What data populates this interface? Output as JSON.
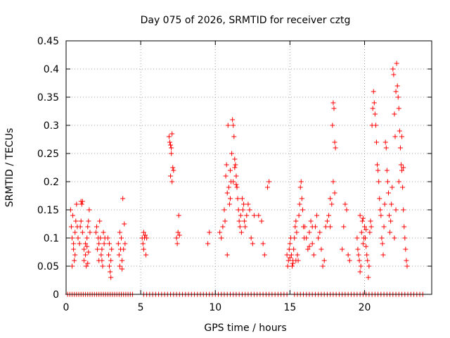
{
  "chart_data": {
    "type": "scatter",
    "title": "Day 075 of 2026, SRMTID for receiver cztg",
    "xlabel": "GPS time / hours",
    "ylabel": "SRMTID / TECUs",
    "xlim": [
      0,
      24.5
    ],
    "ylim": [
      0,
      0.45
    ],
    "x_ticks": [
      0,
      5,
      10,
      15,
      20
    ],
    "y_ticks": [
      0,
      0.05,
      0.1,
      0.15,
      0.2,
      0.25,
      0.3,
      0.35,
      0.4,
      0.45
    ],
    "x_tick_labels": [
      "0",
      "5",
      "10",
      "15",
      "20"
    ],
    "y_tick_labels": [
      "0",
      "0.05",
      "0.1",
      "0.15",
      "0.2",
      "0.25",
      "0.3",
      "0.35",
      "0.4",
      "0.45"
    ],
    "grid": true,
    "marker": "+",
    "series_color": "#ff0000",
    "series": [
      {
        "name": "SRMTID",
        "points": [
          [
            0.3,
            0.15
          ],
          [
            0.35,
            0.12
          ],
          [
            0.4,
            0.1
          ],
          [
            0.45,
            0.14
          ],
          [
            0.5,
            0.08
          ],
          [
            0.55,
            0.06
          ],
          [
            0.6,
            0.11
          ],
          [
            0.65,
            0.13
          ],
          [
            0.4,
            0.05
          ],
          [
            0.5,
            0.09
          ],
          [
            0.7,
            0.16
          ],
          [
            0.75,
            0.12
          ],
          [
            0.6,
            0.07
          ],
          [
            0.8,
            0.1
          ],
          [
            0.9,
            0.09
          ],
          [
            0.95,
            0.12
          ],
          [
            1.0,
            0.165
          ],
          [
            1.05,
            0.16
          ],
          [
            1.1,
            0.165
          ],
          [
            1.0,
            0.13
          ],
          [
            1.1,
            0.11
          ],
          [
            1.2,
            0.08
          ],
          [
            1.3,
            0.07
          ],
          [
            1.35,
            0.05
          ],
          [
            1.4,
            0.1
          ],
          [
            1.45,
            0.12
          ],
          [
            1.5,
            0.13
          ],
          [
            1.55,
            0.15
          ],
          [
            1.2,
            0.06
          ],
          [
            1.3,
            0.09
          ],
          [
            1.4,
            0.085
          ],
          [
            1.5,
            0.075
          ],
          [
            1.6,
            0.11
          ],
          [
            1.45,
            0.055
          ],
          [
            2.0,
            0.11
          ],
          [
            2.05,
            0.12
          ],
          [
            2.1,
            0.08
          ],
          [
            2.15,
            0.1
          ],
          [
            2.2,
            0.09
          ],
          [
            2.25,
            0.13
          ],
          [
            2.3,
            0.1
          ],
          [
            2.35,
            0.07
          ],
          [
            2.4,
            0.06
          ],
          [
            2.45,
            0.05
          ],
          [
            2.5,
            0.11
          ],
          [
            2.55,
            0.09
          ],
          [
            2.6,
            0.1
          ],
          [
            2.2,
            0.06
          ],
          [
            2.4,
            0.08
          ],
          [
            2.8,
            0.1
          ],
          [
            2.85,
            0.07
          ],
          [
            2.9,
            0.05
          ],
          [
            2.95,
            0.04
          ],
          [
            3.0,
            0.06
          ],
          [
            3.05,
            0.08
          ],
          [
            2.9,
            0.09
          ],
          [
            3.0,
            0.03
          ],
          [
            3.5,
            0.09
          ],
          [
            3.55,
            0.07
          ],
          [
            3.6,
            0.05
          ],
          [
            3.65,
            0.08
          ],
          [
            3.7,
            0.1
          ],
          [
            3.75,
            0.06
          ],
          [
            3.8,
            0.17
          ],
          [
            3.85,
            0.08
          ],
          [
            3.9,
            0.125
          ],
          [
            3.95,
            0.09
          ],
          [
            3.6,
            0.11
          ],
          [
            3.75,
            0.045
          ],
          [
            5.1,
            0.1
          ],
          [
            5.15,
            0.09
          ],
          [
            5.2,
            0.08
          ],
          [
            5.25,
            0.1
          ],
          [
            5.3,
            0.105
          ],
          [
            5.35,
            0.07
          ],
          [
            5.4,
            0.1
          ],
          [
            5.2,
            0.11
          ],
          [
            6.9,
            0.28
          ],
          [
            6.95,
            0.27
          ],
          [
            7.0,
            0.265
          ],
          [
            7.05,
            0.25
          ],
          [
            7.1,
            0.285
          ],
          [
            7.15,
            0.225
          ],
          [
            7.0,
            0.21
          ],
          [
            7.1,
            0.2
          ],
          [
            7.2,
            0.22
          ],
          [
            7.05,
            0.26
          ],
          [
            7.4,
            0.1
          ],
          [
            7.45,
            0.09
          ],
          [
            7.5,
            0.11
          ],
          [
            7.55,
            0.14
          ],
          [
            7.6,
            0.105
          ],
          [
            9.5,
            0.09
          ],
          [
            9.6,
            0.11
          ],
          [
            10.3,
            0.11
          ],
          [
            10.4,
            0.1
          ],
          [
            10.5,
            0.12
          ],
          [
            10.6,
            0.15
          ],
          [
            10.65,
            0.13
          ],
          [
            10.7,
            0.21
          ],
          [
            10.75,
            0.23
          ],
          [
            10.8,
            0.18
          ],
          [
            10.85,
            0.3
          ],
          [
            10.9,
            0.19
          ],
          [
            10.95,
            0.16
          ],
          [
            11.0,
            0.22
          ],
          [
            11.05,
            0.2
          ],
          [
            11.1,
            0.25
          ],
          [
            11.15,
            0.31
          ],
          [
            11.2,
            0.3
          ],
          [
            11.25,
            0.28
          ],
          [
            11.3,
            0.24
          ],
          [
            11.35,
            0.23
          ],
          [
            11.4,
            0.21
          ],
          [
            11.45,
            0.19
          ],
          [
            11.5,
            0.17
          ],
          [
            11.55,
            0.15
          ],
          [
            11.6,
            0.13
          ],
          [
            11.65,
            0.12
          ],
          [
            11.7,
            0.14
          ],
          [
            11.75,
            0.11
          ],
          [
            10.8,
            0.07
          ],
          [
            11.0,
            0.17
          ],
          [
            11.2,
            0.2
          ],
          [
            11.3,
            0.225
          ],
          [
            11.4,
            0.195
          ],
          [
            11.8,
            0.17
          ],
          [
            11.85,
            0.15
          ],
          [
            11.9,
            0.16
          ],
          [
            11.95,
            0.13
          ],
          [
            12.0,
            0.12
          ],
          [
            12.1,
            0.14
          ],
          [
            12.2,
            0.16
          ],
          [
            12.3,
            0.15
          ],
          [
            12.4,
            0.1
          ],
          [
            12.5,
            0.09
          ],
          [
            12.6,
            0.14
          ],
          [
            12.9,
            0.14
          ],
          [
            13.1,
            0.13
          ],
          [
            13.2,
            0.09
          ],
          [
            13.3,
            0.07
          ],
          [
            13.5,
            0.19
          ],
          [
            13.6,
            0.2
          ],
          [
            14.8,
            0.07
          ],
          [
            14.85,
            0.05
          ],
          [
            14.9,
            0.06
          ],
          [
            14.95,
            0.08
          ],
          [
            15.0,
            0.09
          ],
          [
            15.05,
            0.1
          ],
          [
            15.1,
            0.07
          ],
          [
            15.15,
            0.05
          ],
          [
            15.2,
            0.06
          ],
          [
            15.25,
            0.08
          ],
          [
            15.3,
            0.1
          ],
          [
            15.35,
            0.12
          ],
          [
            15.4,
            0.13
          ],
          [
            15.45,
            0.11
          ],
          [
            15.5,
            0.07
          ],
          [
            15.55,
            0.06
          ],
          [
            15.6,
            0.14
          ],
          [
            15.65,
            0.16
          ],
          [
            15.7,
            0.19
          ],
          [
            15.75,
            0.2
          ],
          [
            15.8,
            0.17
          ],
          [
            15.85,
            0.15
          ],
          [
            15.9,
            0.12
          ],
          [
            15.95,
            0.1
          ],
          [
            15.0,
            0.065
          ],
          [
            15.2,
            0.055
          ],
          [
            15.4,
            0.06
          ],
          [
            16.0,
            0.12
          ],
          [
            16.1,
            0.1
          ],
          [
            16.2,
            0.08
          ],
          [
            16.3,
            0.11
          ],
          [
            16.4,
            0.13
          ],
          [
            16.5,
            0.09
          ],
          [
            16.6,
            0.07
          ],
          [
            16.7,
            0.12
          ],
          [
            16.8,
            0.14
          ],
          [
            16.9,
            0.1
          ],
          [
            16.5,
            0.12
          ],
          [
            16.3,
            0.085
          ],
          [
            17.0,
            0.11
          ],
          [
            17.1,
            0.08
          ],
          [
            17.2,
            0.05
          ],
          [
            17.3,
            0.06
          ],
          [
            17.4,
            0.12
          ],
          [
            17.5,
            0.13
          ],
          [
            17.6,
            0.14
          ],
          [
            17.7,
            0.12
          ],
          [
            17.8,
            0.16
          ],
          [
            17.85,
            0.3
          ],
          [
            17.9,
            0.34
          ],
          [
            17.95,
            0.33
          ],
          [
            18.0,
            0.27
          ],
          [
            18.05,
            0.26
          ],
          [
            17.9,
            0.2
          ],
          [
            18.0,
            0.18
          ],
          [
            17.7,
            0.17
          ],
          [
            18.5,
            0.08
          ],
          [
            18.6,
            0.12
          ],
          [
            18.7,
            0.16
          ],
          [
            18.8,
            0.15
          ],
          [
            18.9,
            0.07
          ],
          [
            19.0,
            0.06
          ],
          [
            19.5,
            0.1
          ],
          [
            19.55,
            0.08
          ],
          [
            19.6,
            0.07
          ],
          [
            19.65,
            0.06
          ],
          [
            19.7,
            0.04
          ],
          [
            19.75,
            0.05
          ],
          [
            19.8,
            0.11
          ],
          [
            19.85,
            0.13
          ],
          [
            19.9,
            0.09
          ],
          [
            19.95,
            0.1
          ],
          [
            20.0,
            0.12
          ],
          [
            20.05,
            0.1
          ],
          [
            20.1,
            0.085
          ],
          [
            20.15,
            0.07
          ],
          [
            20.2,
            0.06
          ],
          [
            20.25,
            0.03
          ],
          [
            20.3,
            0.05
          ],
          [
            20.35,
            0.11
          ],
          [
            20.4,
            0.13
          ],
          [
            20.45,
            0.12
          ],
          [
            19.7,
            0.14
          ],
          [
            19.9,
            0.135
          ],
          [
            20.1,
            0.115
          ],
          [
            20.5,
            0.3
          ],
          [
            20.55,
            0.33
          ],
          [
            20.6,
            0.36
          ],
          [
            20.65,
            0.34
          ],
          [
            20.7,
            0.32
          ],
          [
            20.75,
            0.3
          ],
          [
            20.8,
            0.27
          ],
          [
            20.85,
            0.23
          ],
          [
            20.9,
            0.22
          ],
          [
            20.95,
            0.2
          ],
          [
            21.0,
            0.17
          ],
          [
            21.05,
            0.15
          ],
          [
            21.1,
            0.14
          ],
          [
            21.15,
            0.1
          ],
          [
            21.2,
            0.09
          ],
          [
            21.25,
            0.07
          ],
          [
            21.3,
            0.12
          ],
          [
            21.35,
            0.16
          ],
          [
            21.4,
            0.27
          ],
          [
            21.45,
            0.26
          ],
          [
            21.5,
            0.22
          ],
          [
            21.55,
            0.2
          ],
          [
            21.6,
            0.18
          ],
          [
            21.65,
            0.14
          ],
          [
            21.7,
            0.11
          ],
          [
            21.75,
            0.13
          ],
          [
            21.8,
            0.16
          ],
          [
            21.85,
            0.19
          ],
          [
            21.9,
            0.4
          ],
          [
            21.95,
            0.39
          ],
          [
            22.0,
            0.32
          ],
          [
            22.05,
            0.28
          ],
          [
            22.1,
            0.36
          ],
          [
            22.15,
            0.41
          ],
          [
            22.2,
            0.37
          ],
          [
            22.25,
            0.35
          ],
          [
            22.3,
            0.33
          ],
          [
            22.35,
            0.29
          ],
          [
            22.4,
            0.26
          ],
          [
            22.45,
            0.23
          ],
          [
            22.5,
            0.22
          ],
          [
            22.55,
            0.19
          ],
          [
            22.6,
            0.15
          ],
          [
            22.65,
            0.12
          ],
          [
            22.7,
            0.1
          ],
          [
            22.75,
            0.08
          ],
          [
            22.8,
            0.06
          ],
          [
            22.85,
            0.05
          ],
          [
            22.0,
            0.1
          ],
          [
            22.1,
            0.15
          ],
          [
            22.3,
            0.2
          ],
          [
            22.5,
            0.28
          ],
          [
            22.6,
            0.225
          ]
        ],
        "zero_x": [
          0.1,
          0.25,
          0.4,
          0.55,
          0.7,
          0.85,
          1.0,
          1.15,
          1.3,
          1.45,
          1.6,
          1.75,
          1.9,
          2.05,
          2.2,
          2.35,
          2.5,
          2.65,
          2.8,
          2.95,
          3.1,
          3.25,
          3.4,
          3.55,
          3.7,
          3.85,
          4.0,
          4.15,
          4.3,
          4.45,
          5.2,
          5.4,
          5.6,
          5.8,
          6.0,
          6.2,
          6.4,
          6.6,
          6.8,
          7.0,
          7.2,
          7.4,
          7.6,
          7.8,
          8.0,
          8.2,
          8.4,
          8.6,
          8.8,
          9.0,
          9.2,
          9.4,
          9.6,
          9.8,
          10.0,
          10.2,
          10.4,
          10.6,
          10.8,
          11.0,
          11.2,
          11.4,
          11.6,
          11.8,
          12.0,
          12.2,
          12.4,
          12.6,
          12.8,
          13.0,
          13.2,
          13.4,
          13.6,
          13.8,
          14.0,
          14.2,
          14.4,
          14.6,
          14.8,
          15.3,
          15.5,
          15.7,
          15.9,
          16.1,
          16.3,
          16.5,
          16.7,
          16.9,
          17.1,
          17.3,
          17.5,
          17.7,
          17.9,
          18.1,
          18.3,
          18.5,
          18.7,
          18.9,
          19.1,
          19.3,
          19.5,
          19.7,
          19.9,
          20.1,
          20.3,
          20.5,
          20.7,
          20.9,
          21.1,
          21.3,
          21.5,
          21.7,
          21.9,
          22.1,
          22.3,
          22.5,
          22.7,
          22.9,
          23.1,
          23.3,
          23.5,
          23.7,
          23.9
        ]
      }
    ]
  }
}
